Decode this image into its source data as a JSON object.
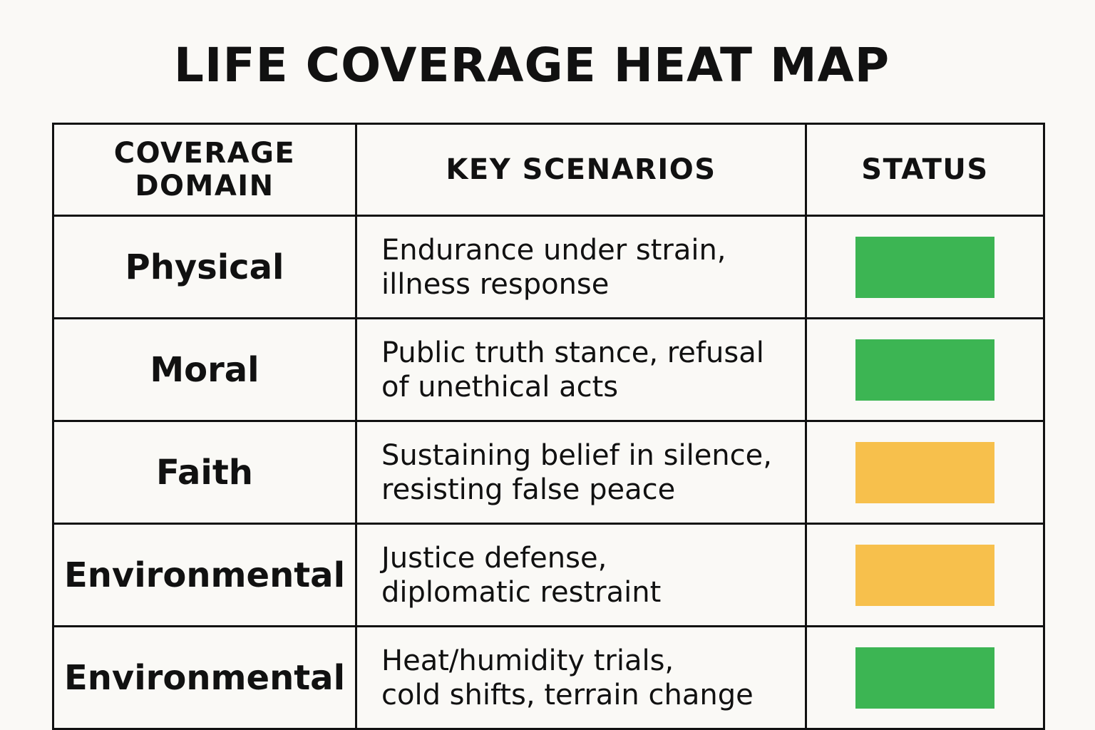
{
  "title": "LIFE COVERAGE HEAT MAP",
  "columns": {
    "domain": "COVERAGE DOMAIN",
    "scenarios": "KEY SCENARIOS",
    "status": "STATUS"
  },
  "status_colors": {
    "green": "#3cb553",
    "amber": "#f7c04c"
  },
  "rows": [
    {
      "domain": "Physical",
      "scenario_lines": [
        "Endurance under strain,",
        "illness response"
      ],
      "status": "green"
    },
    {
      "domain": "Moral",
      "scenario_lines": [
        "Public truth stance, refusal",
        "of unethical acts"
      ],
      "status": "green"
    },
    {
      "domain": "Faith",
      "scenario_lines": [
        "Sustaining belief in silence,",
        "resisting false peace"
      ],
      "status": "amber"
    },
    {
      "domain": "Environmental",
      "scenario_lines": [
        "Justice defense,",
        "diplomatic restraint"
      ],
      "status": "amber"
    },
    {
      "domain": "Environmental",
      "scenario_lines": [
        "Heat/humidity trials,",
        "cold shifts, terrain change"
      ],
      "status": "green"
    }
  ]
}
